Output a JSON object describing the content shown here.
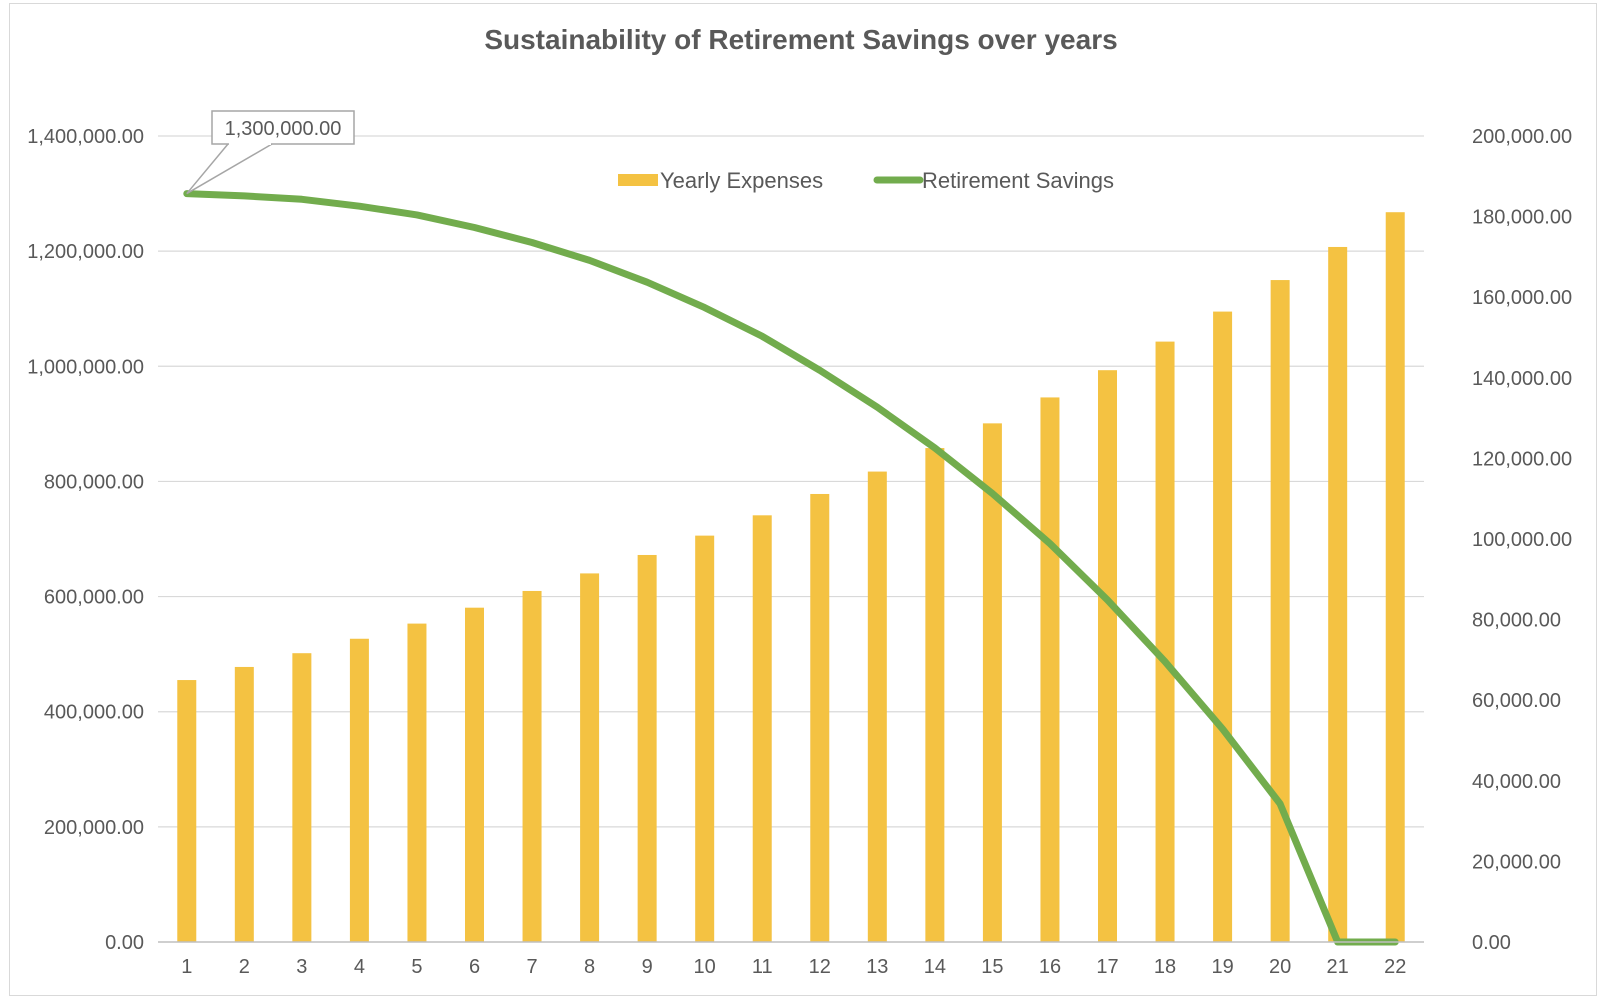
{
  "chart_data": {
    "type": "bar+line",
    "title": "Sustainability of Retirement Savings over years",
    "categories": [
      "1",
      "2",
      "3",
      "4",
      "5",
      "6",
      "7",
      "8",
      "9",
      "10",
      "11",
      "12",
      "13",
      "14",
      "15",
      "16",
      "17",
      "18",
      "19",
      "20",
      "21",
      "22"
    ],
    "series": [
      {
        "name": "Yearly Expenses",
        "type": "bar",
        "axis": "right",
        "color": "#F4C242",
        "values": [
          65000,
          68250,
          71663,
          75246,
          79008,
          82958,
          87106,
          91462,
          96035,
          100837,
          105879,
          111173,
          116731,
          122568,
          128696,
          135131,
          141888,
          148982,
          156431,
          164253,
          172465,
          181089
        ]
      },
      {
        "name": "Retirement Savings",
        "type": "line",
        "axis": "left",
        "color": "#72AC4D",
        "values": [
          1300000,
          1296000,
          1290000,
          1278000,
          1263000,
          1241000,
          1215000,
          1184000,
          1146000,
          1102000,
          1052000,
          993000,
          929000,
          858000,
          779000,
          692000,
          594000,
          487000,
          370000,
          240000,
          0,
          0
        ]
      }
    ],
    "y_left": {
      "min": 0,
      "max": 1400000,
      "ticks": [
        "0.00",
        "200,000.00",
        "400,000.00",
        "600,000.00",
        "800,000.00",
        "1,000,000.00",
        "1,200,000.00",
        "1,400,000.00"
      ]
    },
    "y_right": {
      "min": 0,
      "max": 200000,
      "ticks": [
        "0.00",
        "20,000.00",
        "40,000.00",
        "60,000.00",
        "80,000.00",
        "100,000.00",
        "120,000.00",
        "140,000.00",
        "160,000.00",
        "180,000.00",
        "200,000.00"
      ]
    },
    "annotation": {
      "text": "1,300,000.00",
      "category": "1",
      "series": "Retirement Savings"
    },
    "legend": "top-center",
    "grid": true
  }
}
